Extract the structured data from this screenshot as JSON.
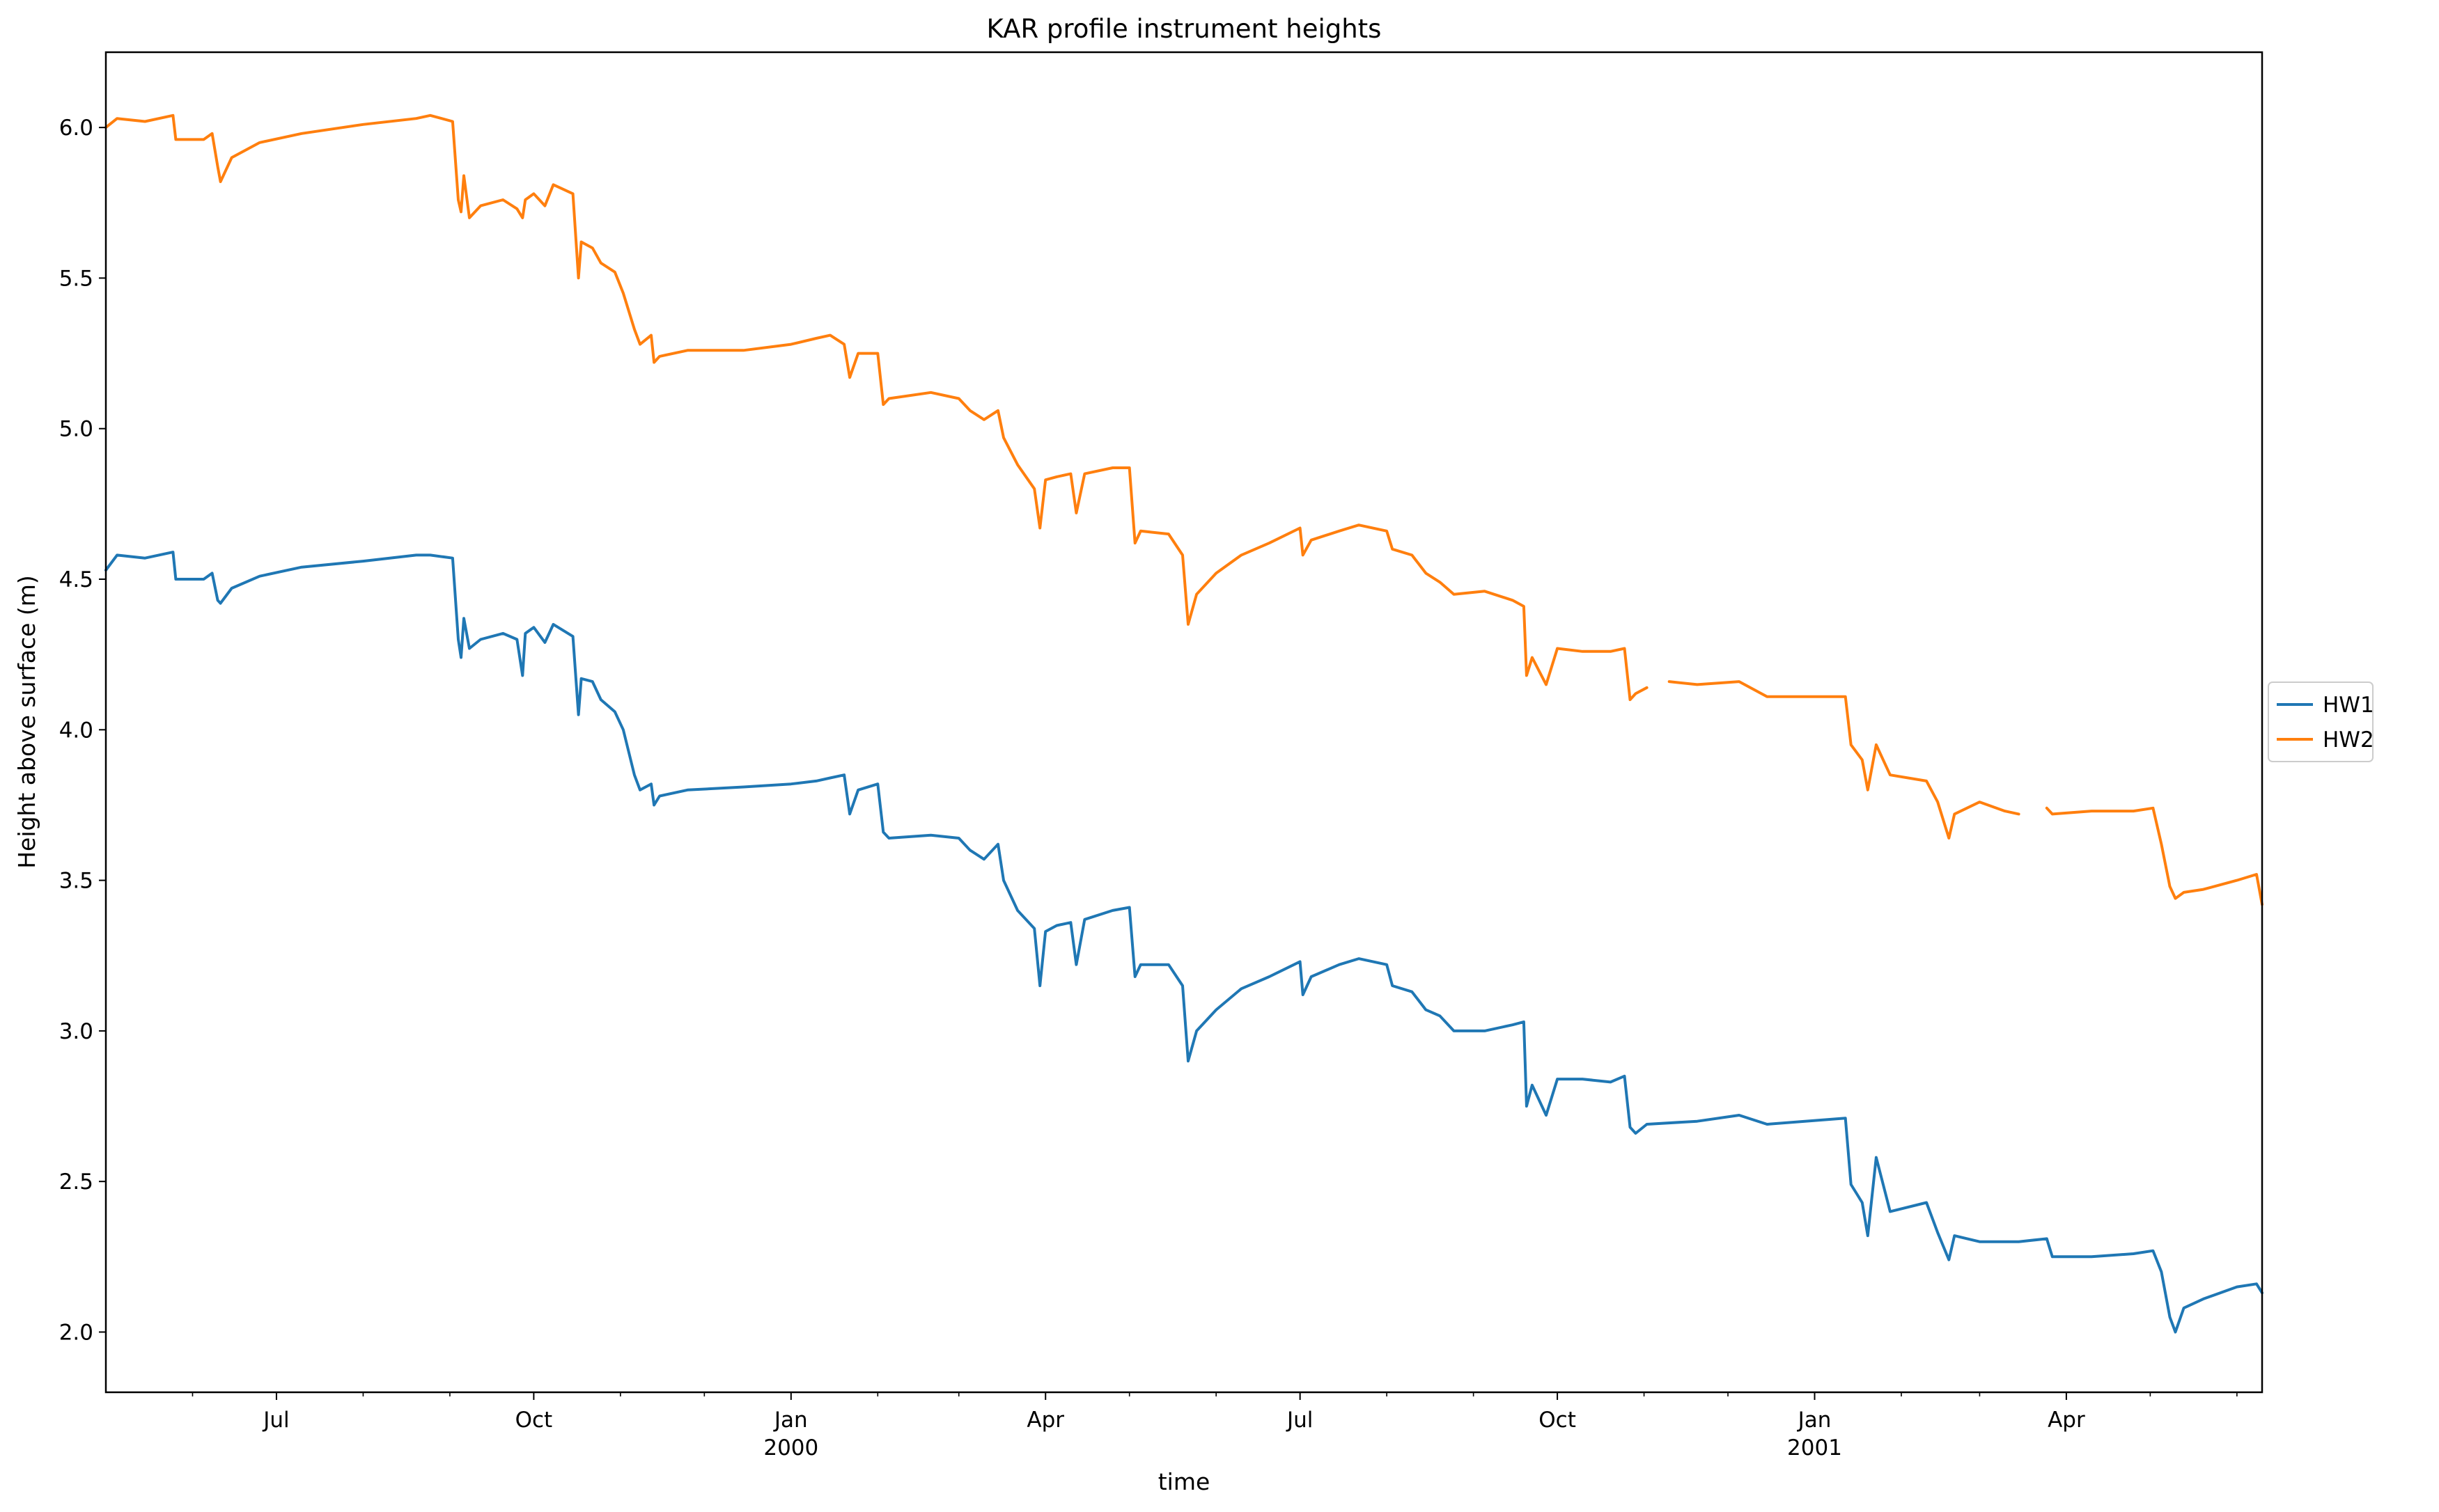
{
  "chart_data": {
    "type": "line",
    "title": "KAR profile instrument heights",
    "xlabel": "time",
    "ylabel": "Height above surface (m)",
    "x_range": [
      "1999-05-01",
      "2001-06-10"
    ],
    "ylim": [
      1.8,
      6.25
    ],
    "grid": false,
    "legend_placement": "right",
    "y_ticks": [
      "2.0",
      "2.5",
      "3.0",
      "3.5",
      "4.0",
      "4.5",
      "5.0",
      "5.5",
      "6.0"
    ],
    "x_ticks": [
      {
        "date": "1999-07-01",
        "label": "Jul",
        "sublabel": ""
      },
      {
        "date": "1999-10-01",
        "label": "Oct",
        "sublabel": ""
      },
      {
        "date": "2000-01-01",
        "label": "Jan",
        "sublabel": "2000"
      },
      {
        "date": "2000-04-01",
        "label": "Apr",
        "sublabel": ""
      },
      {
        "date": "2000-07-01",
        "label": "Jul",
        "sublabel": ""
      },
      {
        "date": "2000-10-01",
        "label": "Oct",
        "sublabel": ""
      },
      {
        "date": "2001-01-01",
        "label": "Jan",
        "sublabel": "2001"
      },
      {
        "date": "2001-04-01",
        "label": "Apr",
        "sublabel": ""
      }
    ],
    "minor_ticks": [
      "1999-06-01",
      "1999-08-01",
      "1999-09-01",
      "1999-11-01",
      "1999-12-01",
      "2000-02-01",
      "2000-03-01",
      "2000-05-01",
      "2000-06-01",
      "2000-08-01",
      "2000-09-01",
      "2000-11-01",
      "2000-12-01",
      "2001-02-01",
      "2001-03-01",
      "2001-05-01",
      "2001-06-01"
    ],
    "series": [
      {
        "name": "HW1",
        "color": "#1f77b4",
        "points": [
          [
            "1999-05-01",
            4.53
          ],
          [
            "1999-05-05",
            4.58
          ],
          [
            "1999-05-15",
            4.57
          ],
          [
            "1999-05-25",
            4.59
          ],
          [
            "1999-05-26",
            4.5
          ],
          [
            "1999-06-05",
            4.5
          ],
          [
            "1999-06-08",
            4.52
          ],
          [
            "1999-06-10",
            4.43
          ],
          [
            "1999-06-11",
            4.42
          ],
          [
            "1999-06-15",
            4.47
          ],
          [
            "1999-06-25",
            4.51
          ],
          [
            "1999-07-10",
            4.54
          ],
          [
            "1999-08-01",
            4.56
          ],
          [
            "1999-08-20",
            4.58
          ],
          [
            "1999-08-25",
            4.58
          ],
          [
            "1999-09-02",
            4.57
          ],
          [
            "1999-09-04",
            4.3
          ],
          [
            "1999-09-05",
            4.24
          ],
          [
            "1999-09-06",
            4.37
          ],
          [
            "1999-09-08",
            4.27
          ],
          [
            "1999-09-12",
            4.3
          ],
          [
            "1999-09-20",
            4.32
          ],
          [
            "1999-09-25",
            4.3
          ],
          [
            "1999-09-27",
            4.18
          ],
          [
            "1999-09-28",
            4.32
          ],
          [
            "1999-10-01",
            4.34
          ],
          [
            "1999-10-05",
            4.29
          ],
          [
            "1999-10-08",
            4.35
          ],
          [
            "1999-10-15",
            4.31
          ],
          [
            "1999-10-17",
            4.05
          ],
          [
            "1999-10-18",
            4.17
          ],
          [
            "1999-10-22",
            4.16
          ],
          [
            "1999-10-25",
            4.1
          ],
          [
            "1999-10-30",
            4.06
          ],
          [
            "1999-11-02",
            4.0
          ],
          [
            "1999-11-06",
            3.85
          ],
          [
            "1999-11-08",
            3.8
          ],
          [
            "1999-11-12",
            3.82
          ],
          [
            "1999-11-13",
            3.75
          ],
          [
            "1999-11-15",
            3.78
          ],
          [
            "1999-11-25",
            3.8
          ],
          [
            "1999-12-15",
            3.81
          ],
          [
            "2000-01-01",
            3.82
          ],
          [
            "2000-01-10",
            3.83
          ],
          [
            "2000-01-15",
            3.84
          ],
          [
            "2000-01-20",
            3.85
          ],
          [
            "2000-01-22",
            3.72
          ],
          [
            "2000-01-25",
            3.8
          ],
          [
            "2000-02-01",
            3.82
          ],
          [
            "2000-02-03",
            3.66
          ],
          [
            "2000-02-05",
            3.64
          ],
          [
            "2000-02-20",
            3.65
          ],
          [
            "2000-03-01",
            3.64
          ],
          [
            "2000-03-05",
            3.6
          ],
          [
            "2000-03-10",
            3.57
          ],
          [
            "2000-03-15",
            3.62
          ],
          [
            "2000-03-17",
            3.5
          ],
          [
            "2000-03-22",
            3.4
          ],
          [
            "2000-03-28",
            3.34
          ],
          [
            "2000-03-30",
            3.15
          ],
          [
            "2000-04-01",
            3.33
          ],
          [
            "2000-04-05",
            3.35
          ],
          [
            "2000-04-10",
            3.36
          ],
          [
            "2000-04-12",
            3.22
          ],
          [
            "2000-04-15",
            3.37
          ],
          [
            "2000-04-25",
            3.4
          ],
          [
            "2000-05-01",
            3.41
          ],
          [
            "2000-05-03",
            3.18
          ],
          [
            "2000-05-05",
            3.22
          ],
          [
            "2000-05-15",
            3.22
          ],
          [
            "2000-05-20",
            3.15
          ],
          [
            "2000-05-22",
            2.9
          ],
          [
            "2000-05-25",
            3.0
          ],
          [
            "2000-06-01",
            3.07
          ],
          [
            "2000-06-10",
            3.14
          ],
          [
            "2000-06-20",
            3.18
          ],
          [
            "2000-07-01",
            3.23
          ],
          [
            "2000-07-02",
            3.12
          ],
          [
            "2000-07-05",
            3.18
          ],
          [
            "2000-07-15",
            3.22
          ],
          [
            "2000-07-22",
            3.24
          ],
          [
            "2000-08-01",
            3.22
          ],
          [
            "2000-08-03",
            3.15
          ],
          [
            "2000-08-10",
            3.13
          ],
          [
            "2000-08-15",
            3.07
          ],
          [
            "2000-08-20",
            3.05
          ],
          [
            "2000-08-25",
            3.0
          ],
          [
            "2000-09-05",
            3.0
          ],
          [
            "2000-09-15",
            3.02
          ],
          [
            "2000-09-19",
            3.03
          ],
          [
            "2000-09-20",
            2.75
          ],
          [
            "2000-09-22",
            2.82
          ],
          [
            "2000-09-27",
            2.72
          ],
          [
            "2000-10-01",
            2.84
          ],
          [
            "2000-10-10",
            2.84
          ],
          [
            "2000-10-20",
            2.83
          ],
          [
            "2000-10-25",
            2.85
          ],
          [
            "2000-10-27",
            2.68
          ],
          [
            "2000-10-29",
            2.66
          ],
          [
            "2000-11-02",
            2.69
          ],
          [
            "2000-11-20",
            2.7
          ],
          [
            "2000-12-05",
            2.72
          ],
          [
            "2000-12-15",
            2.69
          ],
          [
            "2001-01-12",
            2.71
          ],
          [
            "2001-01-14",
            2.49
          ],
          [
            "2001-01-18",
            2.43
          ],
          [
            "2001-01-20",
            2.32
          ],
          [
            "2001-01-23",
            2.58
          ],
          [
            "2001-01-28",
            2.4
          ],
          [
            "2001-02-10",
            2.43
          ],
          [
            "2001-02-14",
            2.33
          ],
          [
            "2001-02-18",
            2.24
          ],
          [
            "2001-02-20",
            2.32
          ],
          [
            "2001-03-01",
            2.3
          ],
          [
            "2001-03-15",
            2.3
          ],
          [
            "2001-03-25",
            2.31
          ],
          [
            "2001-03-27",
            2.25
          ],
          [
            "2001-04-10",
            2.25
          ],
          [
            "2001-04-25",
            2.26
          ],
          [
            "2001-05-02",
            2.27
          ],
          [
            "2001-05-05",
            2.2
          ],
          [
            "2001-05-08",
            2.05
          ],
          [
            "2001-05-10",
            2.0
          ],
          [
            "2001-05-13",
            2.08
          ],
          [
            "2001-05-20",
            2.11
          ],
          [
            "2001-06-01",
            2.15
          ],
          [
            "2001-06-08",
            2.16
          ],
          [
            "2001-06-10",
            2.13
          ]
        ]
      },
      {
        "name": "HW2",
        "color": "#ff7f0e",
        "points": [
          [
            "1999-05-01",
            6.0
          ],
          [
            "1999-05-05",
            6.03
          ],
          [
            "1999-05-15",
            6.02
          ],
          [
            "1999-05-25",
            6.04
          ],
          [
            "1999-05-26",
            5.96
          ],
          [
            "1999-06-05",
            5.96
          ],
          [
            "1999-06-08",
            5.98
          ],
          [
            "1999-06-10",
            5.87
          ],
          [
            "1999-06-11",
            5.82
          ],
          [
            "1999-06-15",
            5.9
          ],
          [
            "1999-06-25",
            5.95
          ],
          [
            "1999-07-10",
            5.98
          ],
          [
            "1999-08-01",
            6.01
          ],
          [
            "1999-08-20",
            6.03
          ],
          [
            "1999-08-25",
            6.04
          ],
          [
            "1999-09-02",
            6.02
          ],
          [
            "1999-09-04",
            5.76
          ],
          [
            "1999-09-05",
            5.72
          ],
          [
            "1999-09-06",
            5.84
          ],
          [
            "1999-09-08",
            5.7
          ],
          [
            "1999-09-12",
            5.74
          ],
          [
            "1999-09-20",
            5.76
          ],
          [
            "1999-09-25",
            5.73
          ],
          [
            "1999-09-27",
            5.7
          ],
          [
            "1999-09-28",
            5.76
          ],
          [
            "1999-10-01",
            5.78
          ],
          [
            "1999-10-05",
            5.74
          ],
          [
            "1999-10-08",
            5.81
          ],
          [
            "1999-10-15",
            5.78
          ],
          [
            "1999-10-17",
            5.5
          ],
          [
            "1999-10-18",
            5.62
          ],
          [
            "1999-10-22",
            5.6
          ],
          [
            "1999-10-25",
            5.55
          ],
          [
            "1999-10-30",
            5.52
          ],
          [
            "1999-11-02",
            5.45
          ],
          [
            "1999-11-06",
            5.33
          ],
          [
            "1999-11-08",
            5.28
          ],
          [
            "1999-11-12",
            5.31
          ],
          [
            "1999-11-13",
            5.22
          ],
          [
            "1999-11-15",
            5.24
          ],
          [
            "1999-11-25",
            5.26
          ],
          [
            "1999-12-15",
            5.26
          ],
          [
            "2000-01-01",
            5.28
          ],
          [
            "2000-01-10",
            5.3
          ],
          [
            "2000-01-15",
            5.31
          ],
          [
            "2000-01-20",
            5.28
          ],
          [
            "2000-01-22",
            5.17
          ],
          [
            "2000-01-25",
            5.25
          ],
          [
            "2000-02-01",
            5.25
          ],
          [
            "2000-02-03",
            5.08
          ],
          [
            "2000-02-05",
            5.1
          ],
          [
            "2000-02-20",
            5.12
          ],
          [
            "2000-03-01",
            5.1
          ],
          [
            "2000-03-05",
            5.06
          ],
          [
            "2000-03-10",
            5.03
          ],
          [
            "2000-03-15",
            5.06
          ],
          [
            "2000-03-17",
            4.97
          ],
          [
            "2000-03-22",
            4.88
          ],
          [
            "2000-03-28",
            4.8
          ],
          [
            "2000-03-30",
            4.67
          ],
          [
            "2000-04-01",
            4.83
          ],
          [
            "2000-04-05",
            4.84
          ],
          [
            "2000-04-10",
            4.85
          ],
          [
            "2000-04-12",
            4.72
          ],
          [
            "2000-04-15",
            4.85
          ],
          [
            "2000-04-25",
            4.87
          ],
          [
            "2000-05-01",
            4.87
          ],
          [
            "2000-05-03",
            4.62
          ],
          [
            "2000-05-05",
            4.66
          ],
          [
            "2000-05-15",
            4.65
          ],
          [
            "2000-05-20",
            4.58
          ],
          [
            "2000-05-22",
            4.35
          ],
          [
            "2000-05-25",
            4.45
          ],
          [
            "2000-06-01",
            4.52
          ],
          [
            "2000-06-10",
            4.58
          ],
          [
            "2000-06-20",
            4.62
          ],
          [
            "2000-07-01",
            4.67
          ],
          [
            "2000-07-02",
            4.58
          ],
          [
            "2000-07-05",
            4.63
          ],
          [
            "2000-07-15",
            4.66
          ],
          [
            "2000-07-22",
            4.68
          ],
          [
            "2000-08-01",
            4.66
          ],
          [
            "2000-08-03",
            4.6
          ],
          [
            "2000-08-10",
            4.58
          ],
          [
            "2000-08-15",
            4.52
          ],
          [
            "2000-08-20",
            4.49
          ],
          [
            "2000-08-25",
            4.45
          ],
          [
            "2000-09-05",
            4.46
          ],
          [
            "2000-09-15",
            4.43
          ],
          [
            "2000-09-19",
            4.41
          ],
          [
            "2000-09-20",
            4.18
          ],
          [
            "2000-09-22",
            4.24
          ],
          [
            "2000-09-27",
            4.15
          ],
          [
            "2000-10-01",
            4.27
          ],
          [
            "2000-10-10",
            4.26
          ],
          [
            "2000-10-20",
            4.26
          ],
          [
            "2000-10-25",
            4.27
          ],
          [
            "2000-10-27",
            4.1
          ],
          [
            "2000-10-29",
            4.12
          ],
          [
            "2000-11-02",
            4.14
          ],
          null,
          [
            "2000-11-10",
            4.16
          ],
          [
            "2000-11-20",
            4.15
          ],
          [
            "2000-12-05",
            4.16
          ],
          [
            "2000-12-15",
            4.11
          ],
          [
            "2001-01-12",
            4.11
          ],
          [
            "2001-01-14",
            3.95
          ],
          [
            "2001-01-18",
            3.9
          ],
          [
            "2001-01-20",
            3.8
          ],
          [
            "2001-01-23",
            3.95
          ],
          [
            "2001-01-28",
            3.85
          ],
          [
            "2001-02-10",
            3.83
          ],
          [
            "2001-02-14",
            3.76
          ],
          [
            "2001-02-18",
            3.64
          ],
          [
            "2001-02-20",
            3.72
          ],
          [
            "2001-03-01",
            3.76
          ],
          [
            "2001-03-10",
            3.73
          ],
          [
            "2001-03-15",
            3.72
          ],
          null,
          [
            "2001-03-25",
            3.74
          ],
          [
            "2001-03-27",
            3.72
          ],
          [
            "2001-04-10",
            3.73
          ],
          [
            "2001-04-25",
            3.73
          ],
          [
            "2001-05-02",
            3.74
          ],
          [
            "2001-05-05",
            3.62
          ],
          [
            "2001-05-08",
            3.48
          ],
          [
            "2001-05-10",
            3.44
          ],
          [
            "2001-05-13",
            3.46
          ],
          [
            "2001-05-20",
            3.47
          ],
          [
            "2001-06-01",
            3.5
          ],
          [
            "2001-06-08",
            3.52
          ],
          [
            "2001-06-10",
            3.42
          ]
        ]
      }
    ]
  }
}
